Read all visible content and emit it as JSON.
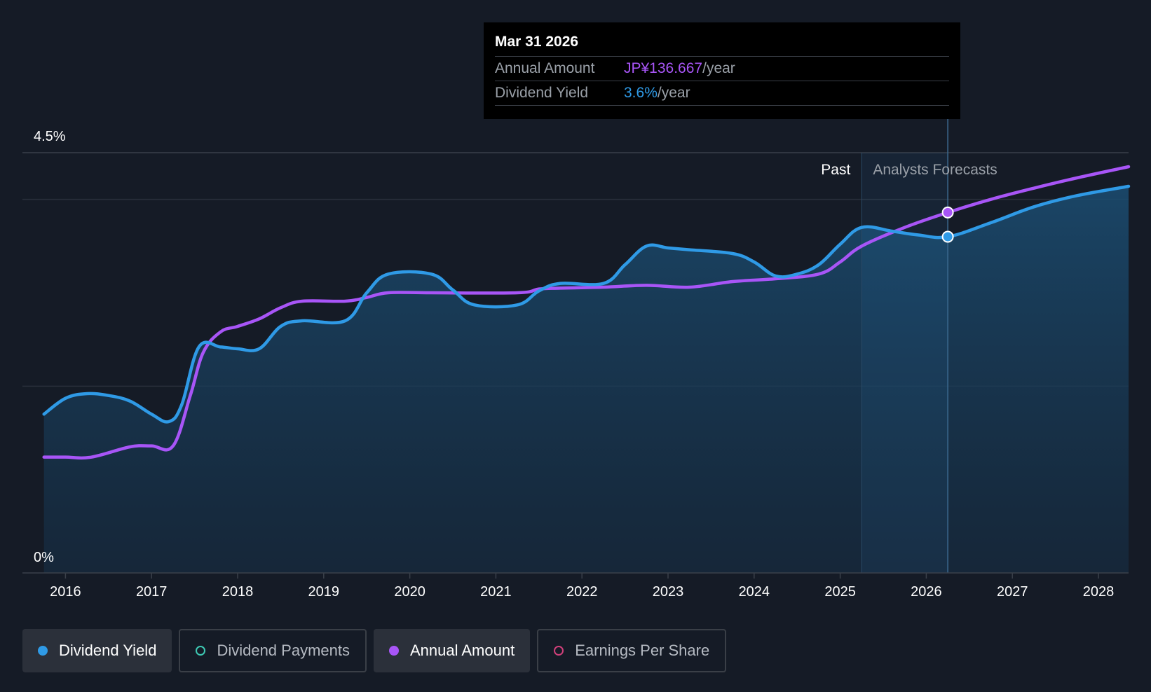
{
  "chart_data": {
    "type": "line",
    "title": "",
    "ylabel": "",
    "xlabel": "",
    "ylim": [
      0,
      4.5
    ],
    "y_tick_labels": [
      "4.5%",
      "0%"
    ],
    "x_ticks": [
      2016,
      2017,
      2018,
      2019,
      2020,
      2021,
      2022,
      2023,
      2024,
      2025,
      2026,
      2027,
      2028
    ],
    "xlim": [
      2015.5,
      2028.35
    ],
    "forecast_start": 2025.25,
    "tooltip_date": 2026.25,
    "zone_labels": {
      "past": "Past",
      "forecast": "Analysts Forecasts"
    },
    "series": [
      {
        "name": "Dividend Yield",
        "color": "#2f9ae6",
        "points": [
          [
            2015.75,
            1.7
          ],
          [
            2016.0,
            1.87
          ],
          [
            2016.25,
            1.92
          ],
          [
            2016.5,
            1.9
          ],
          [
            2016.75,
            1.84
          ],
          [
            2017.0,
            1.7
          ],
          [
            2017.2,
            1.62
          ],
          [
            2017.35,
            1.8
          ],
          [
            2017.55,
            2.42
          ],
          [
            2017.8,
            2.42
          ],
          [
            2018.0,
            2.4
          ],
          [
            2018.25,
            2.4
          ],
          [
            2018.5,
            2.64
          ],
          [
            2018.75,
            2.7
          ],
          [
            2019.25,
            2.7
          ],
          [
            2019.5,
            3.0
          ],
          [
            2019.75,
            3.2
          ],
          [
            2020.25,
            3.2
          ],
          [
            2020.5,
            3.03
          ],
          [
            2020.75,
            2.87
          ],
          [
            2021.25,
            2.87
          ],
          [
            2021.5,
            3.02
          ],
          [
            2021.75,
            3.1
          ],
          [
            2022.25,
            3.1
          ],
          [
            2022.5,
            3.3
          ],
          [
            2022.75,
            3.5
          ],
          [
            2023.0,
            3.48
          ],
          [
            2023.25,
            3.46
          ],
          [
            2023.75,
            3.42
          ],
          [
            2024.0,
            3.33
          ],
          [
            2024.25,
            3.18
          ],
          [
            2024.5,
            3.2
          ],
          [
            2024.75,
            3.3
          ],
          [
            2025.0,
            3.52
          ],
          [
            2025.25,
            3.7
          ],
          [
            2025.6,
            3.66
          ],
          [
            2025.9,
            3.62
          ],
          [
            2026.25,
            3.6
          ],
          [
            2026.75,
            3.75
          ],
          [
            2027.25,
            3.92
          ],
          [
            2027.75,
            4.04
          ],
          [
            2028.35,
            4.14
          ]
        ]
      },
      {
        "name": "Annual Amount",
        "color": "#a855f7",
        "points": [
          [
            2015.75,
            1.24
          ],
          [
            2016.0,
            1.24
          ],
          [
            2016.3,
            1.24
          ],
          [
            2016.75,
            1.35
          ],
          [
            2017.0,
            1.36
          ],
          [
            2017.25,
            1.36
          ],
          [
            2017.45,
            1.9
          ],
          [
            2017.6,
            2.36
          ],
          [
            2017.8,
            2.58
          ],
          [
            2018.0,
            2.64
          ],
          [
            2018.25,
            2.72
          ],
          [
            2018.5,
            2.84
          ],
          [
            2018.75,
            2.91
          ],
          [
            2019.25,
            2.91
          ],
          [
            2019.5,
            2.95
          ],
          [
            2019.75,
            3.0
          ],
          [
            2020.25,
            3.0
          ],
          [
            2021.25,
            3.0
          ],
          [
            2021.5,
            3.04
          ],
          [
            2021.75,
            3.05
          ],
          [
            2022.25,
            3.06
          ],
          [
            2022.75,
            3.08
          ],
          [
            2023.25,
            3.06
          ],
          [
            2023.75,
            3.12
          ],
          [
            2024.25,
            3.15
          ],
          [
            2024.75,
            3.2
          ],
          [
            2025.0,
            3.33
          ],
          [
            2025.25,
            3.5
          ],
          [
            2025.75,
            3.7
          ],
          [
            2026.25,
            3.86
          ],
          [
            2026.75,
            4.0
          ],
          [
            2027.25,
            4.12
          ],
          [
            2027.75,
            4.23
          ],
          [
            2028.35,
            4.35
          ]
        ]
      }
    ]
  },
  "tooltip": {
    "date": "Mar 31 2026",
    "rows": [
      {
        "label": "Annual Amount",
        "value": "JP¥136.667",
        "unit": "/year"
      },
      {
        "label": "Dividend Yield",
        "value": "3.6%",
        "unit": "/year"
      }
    ]
  },
  "legend": [
    {
      "label": "Dividend Yield",
      "active": true,
      "color": "#2f9ae6"
    },
    {
      "label": "Dividend Payments",
      "active": false,
      "color": "#3ec9b4"
    },
    {
      "label": "Annual Amount",
      "active": true,
      "color": "#a855f7"
    },
    {
      "label": "Earnings Per Share",
      "active": false,
      "color": "#d0407a"
    }
  ]
}
